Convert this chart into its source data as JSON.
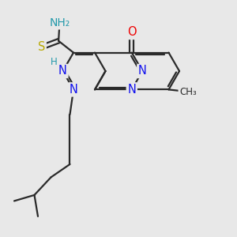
{
  "bg_color": "#e8e8e8",
  "bond_color": "#2a2a2a",
  "bond_width": 1.6,
  "doff": 0.09,
  "atom_colors": {
    "N": "#1010ee",
    "O": "#ee0000",
    "S": "#b8a800",
    "NH2": "#2299aa",
    "H": "#2299aa",
    "C": "#2a2a2a"
  },
  "fs": 10.5
}
